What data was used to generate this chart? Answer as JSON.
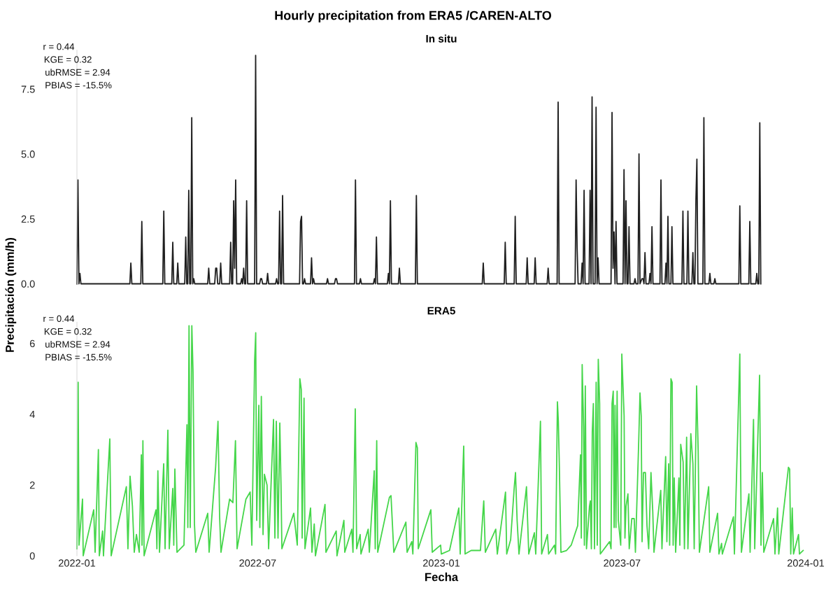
{
  "chart_data": [
    {
      "type": "line",
      "title": "Hourly precipitation from ERA5 /CAREN-ALTO",
      "subtitle": "In situ",
      "ylabel": "Precipitación (mm/h)",
      "tick_labels": "y",
      "xlim": [
        "2022-01-01",
        "2024-01-01"
      ],
      "ylim": [
        0,
        9.0
      ],
      "xticks": [
        {
          "value": "2022-01-01",
          "label": null
        },
        {
          "value": "2022-07-01",
          "label": null
        },
        {
          "value": "2023-01-01",
          "label": null
        },
        {
          "value": "2023-07-01",
          "label": null
        },
        {
          "value": "2024-01-01",
          "label": null
        }
      ],
      "yticks": [
        {
          "value": 0,
          "label": "0.0"
        },
        {
          "value": 2.5,
          "label": "2.5"
        },
        {
          "value": 5,
          "label": "5.0"
        },
        {
          "value": 7.5,
          "label": "7.5"
        }
      ],
      "annotations": [
        "r = 0.44",
        "KGE = 0.32",
        "ubRMSE = 2.94",
        "PBIAS = -15.5%"
      ],
      "series": [
        {
          "color": "#1f1f1f",
          "x": [
            "2022-01-01",
            "2022-01-02",
            "2022-01-03",
            "2022-01-04",
            "2022-01-05",
            "2022-02-23",
            "2022-02-24",
            "2022-02-25",
            "2022-03-06",
            "2022-03-07",
            "2022-03-08",
            "2022-03-28",
            "2022-03-29",
            "2022-03-30",
            "2022-04-06",
            "2022-04-07",
            "2022-04-08",
            "2022-04-11",
            "2022-04-12",
            "2022-04-13",
            "2022-04-19",
            "2022-04-20",
            "2022-04-21",
            "2022-04-22",
            "2022-04-23",
            "2022-04-24",
            "2022-04-25",
            "2022-04-26",
            "2022-04-27",
            "2022-04-28",
            "2022-04-29",
            "2022-05-12",
            "2022-05-13",
            "2022-05-14",
            "2022-05-19",
            "2022-05-20",
            "2022-05-21",
            "2022-05-22",
            "2022-05-24",
            "2022-05-25",
            "2022-05-26",
            "2022-06-03",
            "2022-06-04",
            "2022-06-05",
            "2022-06-06",
            "2022-06-07",
            "2022-06-08",
            "2022-06-09",
            "2022-06-10",
            "2022-06-14",
            "2022-06-15",
            "2022-06-16",
            "2022-06-17",
            "2022-06-18",
            "2022-06-19",
            "2022-06-20",
            "2022-06-21",
            "2022-06-28",
            "2022-06-29",
            "2022-06-30",
            "2022-07-03",
            "2022-07-04",
            "2022-07-05",
            "2022-07-06",
            "2022-07-10",
            "2022-07-11",
            "2022-07-12",
            "2022-07-19",
            "2022-07-20",
            "2022-07-21",
            "2022-07-22",
            "2022-07-23",
            "2022-07-24",
            "2022-07-25",
            "2022-07-26",
            "2022-07-27",
            "2022-08-12",
            "2022-08-13",
            "2022-08-14",
            "2022-08-15",
            "2022-08-16",
            "2022-08-17",
            "2022-08-18",
            "2022-08-23",
            "2022-08-24",
            "2022-08-25",
            "2022-08-26",
            "2022-08-27",
            "2022-09-08",
            "2022-09-09",
            "2022-09-10",
            "2022-09-16",
            "2022-09-17",
            "2022-09-18",
            "2022-09-19",
            "2022-10-06",
            "2022-10-07",
            "2022-10-08",
            "2022-10-11",
            "2022-10-12",
            "2022-10-13",
            "2022-10-25",
            "2022-10-26",
            "2022-10-27",
            "2022-10-28",
            "2022-10-29",
            "2022-11-08",
            "2022-11-09",
            "2022-11-10",
            "2022-11-11",
            "2022-11-12",
            "2022-11-19",
            "2022-11-20",
            "2022-11-21",
            "2022-12-06",
            "2022-12-07",
            "2022-12-08",
            "2023-02-11",
            "2023-02-12",
            "2023-02-13",
            "2023-03-05",
            "2023-03-06",
            "2023-03-07",
            "2023-03-15",
            "2023-03-16",
            "2023-03-17",
            "2023-03-27",
            "2023-03-28",
            "2023-03-29",
            "2023-04-04",
            "2023-04-05",
            "2023-04-06",
            "2023-04-17",
            "2023-04-18",
            "2023-04-19",
            "2023-04-27",
            "2023-04-28",
            "2023-04-29",
            "2023-05-15",
            "2023-05-16",
            "2023-05-17",
            "2023-05-18",
            "2023-05-21",
            "2023-05-22",
            "2023-05-23",
            "2023-05-24",
            "2023-05-25",
            "2023-05-29",
            "2023-05-30",
            "2023-05-31",
            "2023-06-01",
            "2023-06-02",
            "2023-06-04",
            "2023-06-05",
            "2023-06-06",
            "2023-06-07",
            "2023-06-08",
            "2023-06-20",
            "2023-06-21",
            "2023-06-22",
            "2023-06-23",
            "2023-06-24",
            "2023-06-25",
            "2023-06-26",
            "2023-07-02",
            "2023-07-03",
            "2023-07-04",
            "2023-07-05",
            "2023-07-06",
            "2023-07-07",
            "2023-07-08",
            "2023-07-09",
            "2023-07-13",
            "2023-07-14",
            "2023-07-15",
            "2023-07-17",
            "2023-07-18",
            "2023-07-19",
            "2023-07-21",
            "2023-07-22",
            "2023-07-23",
            "2023-07-24",
            "2023-07-25",
            "2023-07-28",
            "2023-07-29",
            "2023-07-30",
            "2023-07-31",
            "2023-08-01",
            "2023-08-08",
            "2023-08-09",
            "2023-08-10",
            "2023-08-13",
            "2023-08-14",
            "2023-08-15",
            "2023-08-16",
            "2023-08-17",
            "2023-08-19",
            "2023-08-20",
            "2023-08-21",
            "2023-08-30",
            "2023-08-31",
            "2023-09-01",
            "2023-09-04",
            "2023-09-05",
            "2023-09-06",
            "2023-09-09",
            "2023-09-10",
            "2023-09-11",
            "2023-09-12",
            "2023-09-13",
            "2023-09-14",
            "2023-09-15",
            "2023-09-20",
            "2023-09-21",
            "2023-09-22",
            "2023-09-26",
            "2023-09-27",
            "2023-09-28",
            "2023-10-01",
            "2023-10-02",
            "2023-10-03",
            "2023-10-26",
            "2023-10-27",
            "2023-10-28",
            "2023-11-05",
            "2023-11-06",
            "2023-11-07",
            "2023-11-12",
            "2023-11-13",
            "2023-11-14",
            "2023-11-15",
            "2023-11-16",
            "2023-11-17"
          ],
          "values": [
            0,
            4.0,
            0,
            0.4,
            0,
            0,
            0.8,
            0,
            0,
            2.4,
            0,
            0,
            2.8,
            0,
            0,
            1.6,
            0,
            0,
            0.8,
            0,
            0,
            1.8,
            0,
            0,
            3.6,
            0,
            0,
            6.4,
            0,
            0.2,
            0,
            0,
            0.6,
            0,
            0,
            0.6,
            0.6,
            0,
            0,
            0.8,
            0,
            0,
            1.6,
            0,
            0,
            3.2,
            0.6,
            4.0,
            0,
            0,
            0.2,
            0,
            0.6,
            0,
            0,
            3.2,
            0,
            0,
            8.8,
            0,
            0,
            0.2,
            0.2,
            0,
            0,
            0.4,
            0,
            0,
            0.2,
            0,
            0,
            2.8,
            0,
            0,
            3.4,
            0,
            0,
            2.4,
            2.6,
            0,
            0,
            0.2,
            0,
            0,
            1.0,
            0,
            0.2,
            0,
            0,
            0.2,
            0,
            0,
            0.2,
            0.2,
            0,
            0,
            4.0,
            0,
            0,
            0.2,
            0,
            0,
            0.2,
            0,
            1.8,
            0,
            0,
            0.4,
            0,
            3.2,
            0,
            0,
            0.6,
            0,
            0,
            3.4,
            0,
            0,
            0.8,
            0,
            0,
            1.6,
            0,
            0,
            2.6,
            0,
            0,
            1.0,
            0,
            0,
            1.0,
            0,
            0,
            0.6,
            0,
            0,
            7.0,
            0,
            0,
            4.0,
            1.4,
            0,
            0,
            0.8,
            0,
            3.6,
            0,
            0,
            3.6,
            0,
            7.2,
            0,
            0,
            6.8,
            0,
            1.0,
            0,
            0,
            6.6,
            0.6,
            2.0,
            0,
            2.4,
            0,
            0,
            4.4,
            0,
            3.2,
            0,
            0,
            2.2,
            0,
            0,
            0.2,
            0,
            0,
            5.0,
            0,
            0.2,
            0.2,
            0,
            1.2,
            0,
            0,
            0.4,
            0,
            2.2,
            0,
            0,
            4.0,
            0,
            0,
            0.8,
            0,
            2.6,
            0,
            0,
            2.2,
            0,
            0,
            2.8,
            0,
            0,
            2.8,
            0,
            0,
            1.2,
            0,
            0,
            3.2,
            4.8,
            0,
            0,
            6.4,
            0,
            0,
            0.4,
            0,
            0,
            0.2,
            0,
            0,
            3.0,
            0,
            0,
            2.4,
            0,
            0,
            0.4,
            0,
            0,
            6.2,
            0
          ]
        }
      ]
    },
    {
      "type": "line",
      "title": "ERA5",
      "xlabel": "Fecha",
      "xlim": [
        "2022-01-01",
        "2024-01-01"
      ],
      "ylim": [
        0,
        6.6
      ],
      "xticks": [
        {
          "value": "2022-01-01",
          "label": "2022-01"
        },
        {
          "value": "2022-07-01",
          "label": "2022-07"
        },
        {
          "value": "2023-01-01",
          "label": "2023-01"
        },
        {
          "value": "2023-07-01",
          "label": "2023-07"
        },
        {
          "value": "2024-01-01",
          "label": "2024-01"
        }
      ],
      "yticks": [
        0,
        2,
        4,
        6
      ],
      "annotations": [
        "r = 0.44",
        "KGE = 0.32",
        "ubRMSE = 2.94",
        "PBIAS = -15.5%"
      ],
      "series": [
        {
          "color": "#45d64a",
          "x": [
            "2022-01-01T00:00",
            "2022-01-01T14:00",
            "2022-01-02T05:00",
            "2022-01-03T02:00",
            "2022-01-06T14:00",
            "2022-01-07T07:00",
            "2022-01-17T19:00",
            "2022-01-19T05:00",
            "2022-01-22T12:00",
            "2022-01-23T10:00",
            "2022-01-26T17:00",
            "2022-01-27T14:00",
            "2022-02-02T22:00",
            "2022-02-04T07:00",
            "2022-02-19T12:00",
            "2022-02-21T02:00",
            "2022-02-23T05:00",
            "2022-02-25T14:00",
            "2022-02-27T10:00",
            "2022-03-01T14:00",
            "2022-03-04T10:00",
            "2022-03-06T12:00",
            "2022-03-07T05:00",
            "2022-03-08T02:00",
            "2022-03-09T07:00",
            "2022-03-21T05:00",
            "2022-03-22T02:00",
            "2022-03-23T02:00",
            "2022-03-24T17:00",
            "2022-03-28T22:00",
            "2022-03-30T07:00",
            "2022-04-02T02:00",
            "2022-04-03T12:00",
            "2022-04-07T00:00",
            "2022-04-08T00:00",
            "2022-04-09T02:00",
            "2022-04-11T05:00",
            "2022-04-18T05:00",
            "2022-04-21T05:00",
            "2022-04-22T02:00",
            "2022-04-23T07:00",
            "2022-04-24T12:00",
            "2022-04-26T02:00",
            "2022-04-27T07:00",
            "2022-04-28T17:00",
            "2022-04-30T02:00",
            "2022-05-12T00:00",
            "2022-05-13T10:00",
            "2022-05-19T22:00",
            "2022-05-22T07:00",
            "2022-05-23T22:00",
            "2022-05-25T07:00",
            "2022-06-02T22:00",
            "2022-06-06T05:00",
            "2022-06-08T19:00",
            "2022-06-10T10:00",
            "2022-06-19T07:00",
            "2022-06-23T12:00",
            "2022-06-25T05:00",
            "2022-06-28T00:00",
            "2022-06-29T02:00",
            "2022-06-30T02:00",
            "2022-07-02T05:00",
            "2022-07-03T05:00",
            "2022-07-04T17:00",
            "2022-07-06T10:00",
            "2022-07-07T19:00",
            "2022-07-10T10:00",
            "2022-07-12T00:00",
            "2022-07-16T22:00",
            "2022-07-18T07:00",
            "2022-07-19T17:00",
            "2022-07-21T10:00",
            "2022-07-23T05:00",
            "2022-07-24T10:00",
            "2022-07-25T07:00",
            "2022-08-06T05:00",
            "2022-08-09T17:00",
            "2022-08-12T07:00",
            "2022-08-13T17:00",
            "2022-08-14T14:00",
            "2022-08-16T12:00",
            "2022-08-17T10:00",
            "2022-08-23T00:00",
            "2022-08-24T10:00",
            "2022-08-26T17:00",
            "2022-08-27T22:00",
            "2022-09-06T12:00",
            "2022-09-07T10:00",
            "2022-09-17T17:00",
            "2022-09-18T12:00",
            "2022-09-25T10:00",
            "2022-09-26T07:00",
            "2022-10-03T07:00",
            "2022-10-04T12:00",
            "2022-10-06T19:00",
            "2022-10-08T05:00",
            "2022-10-11T17:00",
            "2022-10-12T12:00",
            "2022-10-19T17:00",
            "2022-10-20T22:00",
            "2022-10-25T19:00",
            "2022-10-26T19:00",
            "2022-10-28T07:00",
            "2022-10-29T07:00",
            "2022-11-10T00:00",
            "2022-11-11T14:00",
            "2022-11-13T00:00",
            "2022-11-14T10:00",
            "2022-11-26T12:00",
            "2022-11-27T17:00",
            "2022-12-02T10:00",
            "2022-12-03T12:00",
            "2022-12-06T14:00",
            "2022-12-08T00:00",
            "2022-12-08T22:00",
            "2022-12-21T12:00",
            "2022-12-22T22:00",
            "2022-12-31T07:00",
            "2023-01-01T00:00",
            "2023-01-09T05:00",
            "2023-01-18T12:00",
            "2023-01-19T22:00",
            "2023-01-23T10:00",
            "2023-01-24T19:00",
            "2023-01-30T22:00",
            "2023-02-09T05:00",
            "2023-02-11T07:00",
            "2023-02-12T12:00",
            "2023-02-14T02:00",
            "2023-02-24T12:00",
            "2023-02-26T02:00",
            "2023-03-06T07:00",
            "2023-03-07T12:00",
            "2023-03-11T10:00",
            "2023-03-15T02:00",
            "2023-03-16T07:00",
            "2023-03-17T22:00",
            "2023-03-19T19:00",
            "2023-03-27T07:00",
            "2023-03-28T10:00",
            "2023-03-29T14:00",
            "2023-04-04T05:00",
            "2023-04-05T14:00",
            "2023-04-10T07:00",
            "2023-04-11T12:00",
            "2023-04-17T07:00",
            "2023-04-18T12:00",
            "2023-04-24T07:00",
            "2023-04-25T12:00",
            "2023-04-27T07:00",
            "2023-04-28T05:00",
            "2023-04-29T05:00",
            "2023-04-30T19:00",
            "2023-05-06T10:00",
            "2023-05-11T02:00",
            "2023-05-17T14:00",
            "2023-05-20T10:00",
            "2023-05-21T05:00",
            "2023-05-22T02:00",
            "2023-05-23T12:00",
            "2023-05-24T07:00",
            "2023-05-25T05:00",
            "2023-05-26T10:00",
            "2023-05-29T10:00",
            "2023-05-30T07:00",
            "2023-05-31T07:00",
            "2023-06-01T05:00",
            "2023-06-02T07:00",
            "2023-06-03T10:00",
            "2023-06-05T02:00",
            "2023-06-06T05:00",
            "2023-06-07T05:00",
            "2023-06-08T14:00",
            "2023-06-09T07:00",
            "2023-06-18T14:00",
            "2023-06-20T00:00",
            "2023-06-21T00:00",
            "2023-06-22T05:00",
            "2023-06-23T02:00",
            "2023-06-24T00:00",
            "2023-06-24T22:00",
            "2023-06-26T02:00",
            "2023-06-27T07:00",
            "2023-06-29T17:00",
            "2023-06-30T19:00",
            "2023-07-03T02:00",
            "2023-07-03T22:00",
            "2023-07-05T00:00",
            "2023-07-06T22:00",
            "2023-07-08T05:00",
            "2023-07-10T19:00",
            "2023-07-13T05:00",
            "2023-07-14T10:00",
            "2023-07-17T19:00",
            "2023-07-19T00:00",
            "2023-07-20T05:00",
            "2023-07-21T02:00",
            "2023-07-22T12:00",
            "2023-07-24T10:00",
            "2023-07-26T00:00",
            "2023-07-27T17:00",
            "2023-07-30T00:00",
            "2023-07-31T19:00",
            "2023-08-02T00:00",
            "2023-08-08T19:00",
            "2023-08-10T00:00",
            "2023-08-13T17:00",
            "2023-08-14T22:00",
            "2023-08-16T17:00",
            "2023-08-17T17:00",
            "2023-08-19T00:00",
            "2023-08-20T05:00",
            "2023-08-21T05:00",
            "2023-08-22T07:00",
            "2023-08-23T17:00",
            "2023-08-27T00:00",
            "2023-08-27T22:00",
            "2023-08-28T19:00",
            "2023-08-31T05:00",
            "2023-09-01T12:00",
            "2023-09-03T17:00",
            "2023-09-05T00:00",
            "2023-09-07T22:00",
            "2023-09-10T00:00",
            "2023-09-11T07:00",
            "2023-09-13T17:00",
            "2023-09-15T07:00",
            "2023-09-16T12:00",
            "2023-09-25T19:00",
            "2023-09-27T00:00",
            "2023-10-04T17:00",
            "2023-10-06T02:00",
            "2023-10-08T17:00",
            "2023-10-09T12:00",
            "2023-10-20T14:00",
            "2023-10-21T14:00",
            "2023-10-27T00:00",
            "2023-10-27T17:00",
            "2023-10-28T14:00",
            "2023-11-05T02:00",
            "2023-11-06T07:00",
            "2023-11-09T17:00",
            "2023-11-10T22:00",
            "2023-11-15T19:00",
            "2023-11-17T05:00",
            "2023-11-18T14:00",
            "2023-11-20T00:00",
            "2023-11-29T19:00",
            "2023-12-01T05:00",
            "2023-12-03T19:00",
            "2023-12-05T00:00",
            "2023-12-14T17:00",
            "2023-12-15T22:00",
            "2023-12-17T00:00",
            "2023-12-18T12:00",
            "2023-12-19T19:00",
            "2023-12-24T19:00",
            "2023-12-25T17:00",
            "2023-12-29T10:00"
          ],
          "values": [
            0.2,
            1.6,
            4.9,
            0.3,
            1.6,
            0,
            1.3,
            0.1,
            3.0,
            0,
            0.7,
            0,
            3.3,
            0,
            1.95,
            0.2,
            2.25,
            1.4,
            0.1,
            0.6,
            0.1,
            2.85,
            0.3,
            3.25,
            0,
            1.3,
            0.2,
            2.4,
            0.1,
            2.6,
            0.2,
            3.55,
            0.2,
            1.9,
            0.3,
            2.45,
            0.1,
            0.3,
            3.7,
            0.8,
            6.5,
            0.8,
            6.5,
            5.2,
            0.9,
            0.1,
            1.2,
            0.1,
            2.5,
            3.8,
            1.1,
            0.1,
            1.6,
            1.5,
            3.25,
            0.2,
            1.6,
            1.8,
            0.3,
            5.5,
            6.3,
            1.0,
            4.25,
            0.8,
            4.5,
            0.6,
            2.3,
            2.0,
            0.2,
            3.85,
            0.5,
            3.8,
            0.5,
            3.75,
            2.0,
            0.2,
            1.2,
            0.3,
            5.0,
            4.7,
            0.5,
            4.45,
            0.2,
            1.35,
            0.1,
            0.9,
            0,
            1.45,
            0.1,
            0.7,
            0,
            1.0,
            0.1,
            0.75,
            0.1,
            4.15,
            0.2,
            0.6,
            0.05,
            0.75,
            0.1,
            2.4,
            0.2,
            3.25,
            0.1,
            1.65,
            1.7,
            0.9,
            0.1,
            0.95,
            0.1,
            0.4,
            0.05,
            3.2,
            3.05,
            0.2,
            1.3,
            0.1,
            0.3,
            0.05,
            0.15,
            1.35,
            0.05,
            3.1,
            0.05,
            0.15,
            0.15,
            1.05,
            1.55,
            0.1,
            0.75,
            0.05,
            1.8,
            0.05,
            0.45,
            1.95,
            2.35,
            1.0,
            0.05,
            1.95,
            1.0,
            0.05,
            0.65,
            0.05,
            3.8,
            0.05,
            0.6,
            0.05,
            0.3,
            0.05,
            4.35,
            3.8,
            2.55,
            0.1,
            0.15,
            0.3,
            0.85,
            2.85,
            0.5,
            5.4,
            3.65,
            0.3,
            4.8,
            0.2,
            1.4,
            1.55,
            0.2,
            3.5,
            4.3,
            0.2,
            4.9,
            0.3,
            5.55,
            4.3,
            0.05,
            0.4,
            0.2,
            4.3,
            4.65,
            0.8,
            4.25,
            0.8,
            4.65,
            1.0,
            0.3,
            5.7,
            3.95,
            0.5,
            1.4,
            1.75,
            0.2,
            1.05,
            1.05,
            0.1,
            3.3,
            4.6,
            3.95,
            0.4,
            2.35,
            2.35,
            0.85,
            0.2,
            2.35,
            1.25,
            0.1,
            1.85,
            0.2,
            2.8,
            0.4,
            2.6,
            0.3,
            5.0,
            4.9,
            0.3,
            2.2,
            0.1,
            2.2,
            0.3,
            3.15,
            2.65,
            0.2,
            3.35,
            0.2,
            3.45,
            2.6,
            0.2,
            4.8,
            2.95,
            0.1,
            1.95,
            0.1,
            1.2,
            0.05,
            0.35,
            0.05,
            1.1,
            0.05,
            5.7,
            2.8,
            0.1,
            1.75,
            0.1,
            3.85,
            0.2,
            5.1,
            0.3,
            2.35,
            0.1,
            1.05,
            0.05,
            1.35,
            0.05,
            2.5,
            2.45,
            0.05,
            1.35,
            0.05,
            0.6,
            0.05,
            0.15
          ]
        }
      ]
    }
  ]
}
